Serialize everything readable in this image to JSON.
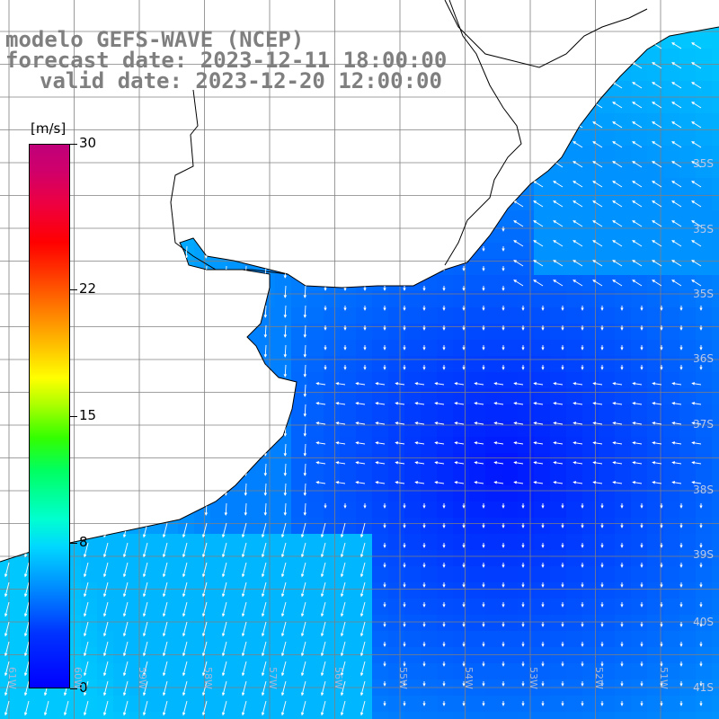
{
  "title": {
    "line1": "modelo GEFS-WAVE (NCEP)",
    "line2": "forecast date: 2023-12-11 18:00:00",
    "line3": "valid date: 2023-12-20 12:00:00"
  },
  "colorbar": {
    "unit": "[m/s]",
    "ticks": [
      {
        "value": 30,
        "label": "30"
      },
      {
        "value": 22,
        "label": "22"
      },
      {
        "value": 15,
        "label": "15"
      },
      {
        "value": 8,
        "label": "8"
      },
      {
        "value": 0,
        "label": "0"
      }
    ],
    "range": [
      0,
      30
    ]
  },
  "map": {
    "lat_labels": [
      "35S",
      "35S",
      "35S",
      "36S",
      "37S",
      "38S",
      "39S",
      "40S",
      "41S"
    ],
    "lon_labels": [
      "61W",
      "60W",
      "59W",
      "58W",
      "57W",
      "56W",
      "55W",
      "54W",
      "53W",
      "52W",
      "51W"
    ],
    "colors": {
      "land": "#ffffff",
      "coast": "#000000",
      "grid": "#808080",
      "vectors": "#ffffff"
    }
  },
  "chart_data": {
    "type": "heatmap",
    "variable": "wind speed with direction vectors",
    "unit": "m/s",
    "color_range": [
      0,
      30
    ]
  }
}
